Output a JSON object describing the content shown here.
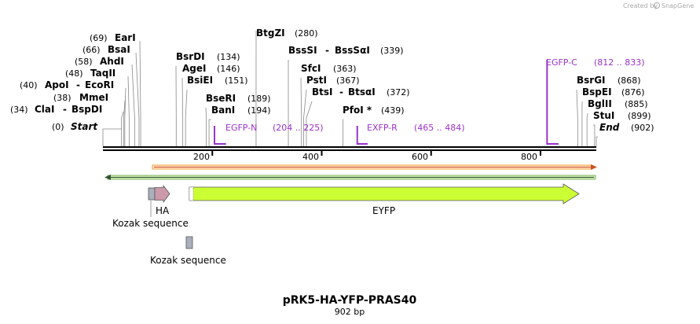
{
  "credit": {
    "text": "Created by",
    "brand": "SnapGene"
  },
  "map": {
    "name": "pRK5-HA-YFP-PRAS40",
    "length_label": "902 bp",
    "total_bp": 902
  },
  "enzymes": [
    {
      "name": "Start",
      "pos": 0,
      "pos_label": "(0)",
      "side": "left"
    },
    {
      "name": "ClaI",
      "alt": "BspDI",
      "pos": 34,
      "pos_label": "(34)",
      "side": "left"
    },
    {
      "name": "MmeI",
      "pos": 38,
      "pos_label": "(38)",
      "side": "left"
    },
    {
      "name": "ApoI",
      "alt": "EcoRI",
      "pos": 40,
      "pos_label": "(40)",
      "side": "left"
    },
    {
      "name": "TaqII",
      "pos": 48,
      "pos_label": "(48)",
      "side": "left"
    },
    {
      "name": "AhdI",
      "pos": 58,
      "pos_label": "(58)",
      "side": "left"
    },
    {
      "name": "BsaI",
      "pos": 66,
      "pos_label": "(66)",
      "side": "left"
    },
    {
      "name": "EarI",
      "pos": 69,
      "pos_label": "(69)",
      "side": "left"
    },
    {
      "name": "BsrDI",
      "pos": 134,
      "pos_label": "(134)",
      "side": "right"
    },
    {
      "name": "AgeI",
      "pos": 146,
      "pos_label": "(146)",
      "side": "right"
    },
    {
      "name": "BsiEI",
      "pos": 151,
      "pos_label": "(151)",
      "side": "right"
    },
    {
      "name": "BseRI",
      "pos": 189,
      "pos_label": "(189)",
      "side": "right"
    },
    {
      "name": "BanI",
      "pos": 194,
      "pos_label": "(194)",
      "side": "right"
    },
    {
      "name": "BtgZI",
      "pos": 280,
      "pos_label": "(280)",
      "side": "right"
    },
    {
      "name": "BssSI",
      "alt": "BssSαI",
      "pos": 339,
      "pos_label": "(339)",
      "side": "right"
    },
    {
      "name": "SfcI",
      "pos": 363,
      "pos_label": "(363)",
      "side": "right"
    },
    {
      "name": "PstI",
      "pos": 367,
      "pos_label": "(367)",
      "side": "right"
    },
    {
      "name": "BtsI",
      "alt": "BtsαI",
      "pos": 372,
      "pos_label": "(372)",
      "side": "right"
    },
    {
      "name": "PfoI *",
      "pos": 439,
      "pos_label": "(439)",
      "side": "right"
    },
    {
      "name": "BsrGI",
      "pos": 868,
      "pos_label": "(868)",
      "side": "right"
    },
    {
      "name": "BspEI",
      "pos": 876,
      "pos_label": "(876)",
      "side": "right"
    },
    {
      "name": "BglII",
      "pos": 885,
      "pos_label": "(885)",
      "side": "right"
    },
    {
      "name": "StuI",
      "pos": 899,
      "pos_label": "(899)",
      "side": "right"
    },
    {
      "name": "End",
      "pos": 902,
      "pos_label": "(902)",
      "side": "right"
    }
  ],
  "primers": [
    {
      "name": "EGFP-N",
      "range": "(204 .. 225)",
      "start": 204,
      "end": 225
    },
    {
      "name": "EXFP-R",
      "range": "(465 .. 484)",
      "start": 465,
      "end": 484
    },
    {
      "name": "EGFP-C",
      "range": "(812 .. 833)",
      "start": 812,
      "end": 833
    }
  ],
  "ticks": [
    {
      "label": "200",
      "pos": 200
    },
    {
      "label": "400",
      "pos": 400
    },
    {
      "label": "600",
      "pos": 600
    },
    {
      "label": "800",
      "pos": 800
    }
  ],
  "features": [
    {
      "name": "HA",
      "type": "tag"
    },
    {
      "name": "Kozak sequence",
      "type": "kozak"
    },
    {
      "name": "EYFP",
      "type": "cds"
    },
    {
      "name": "Kozak sequence",
      "type": "kozak"
    }
  ],
  "colors": {
    "primer": "#9933cc",
    "orf_forward": "#f0a040",
    "orf_reverse": "#336633",
    "eyfp_fill": "#ccff33",
    "ha_fill": "#cc99aa",
    "kozak_fill": "#aab0bb"
  }
}
